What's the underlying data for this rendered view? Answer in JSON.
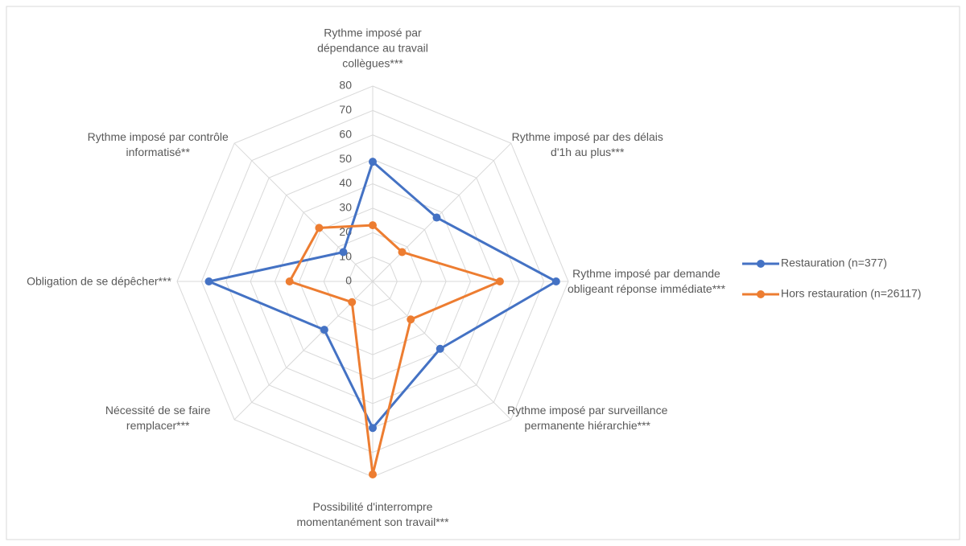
{
  "chart_data": {
    "type": "radar",
    "categories": [
      "Rythme imposé par dépendance au travail collègues***",
      "Rythme imposé par des délais d'1h au plus***",
      "Rythme imposé par demande obligeant réponse immédiate***",
      "Rythme imposé par surveillance permanente hiérarchie***",
      "Possibilité d'interrompre momentanément son travail***",
      "Nécessité de se faire remplacer***",
      "Obligation de se dépêcher***",
      "Rythme imposé par contrôle informatisé**"
    ],
    "series": [
      {
        "name": "Restauration (n=377)",
        "color": "#4472c4",
        "values": [
          49,
          37,
          75,
          39,
          60,
          28,
          67,
          17
        ]
      },
      {
        "name": "Hors restauration (n=26117)",
        "color": "#ed7d31",
        "values": [
          23,
          17,
          52,
          22,
          79,
          12,
          34,
          31
        ]
      }
    ],
    "ylim": [
      0,
      80
    ],
    "yticks": [
      0,
      10,
      20,
      30,
      40,
      50,
      60,
      70,
      80
    ],
    "grid": true,
    "legend": "right"
  }
}
